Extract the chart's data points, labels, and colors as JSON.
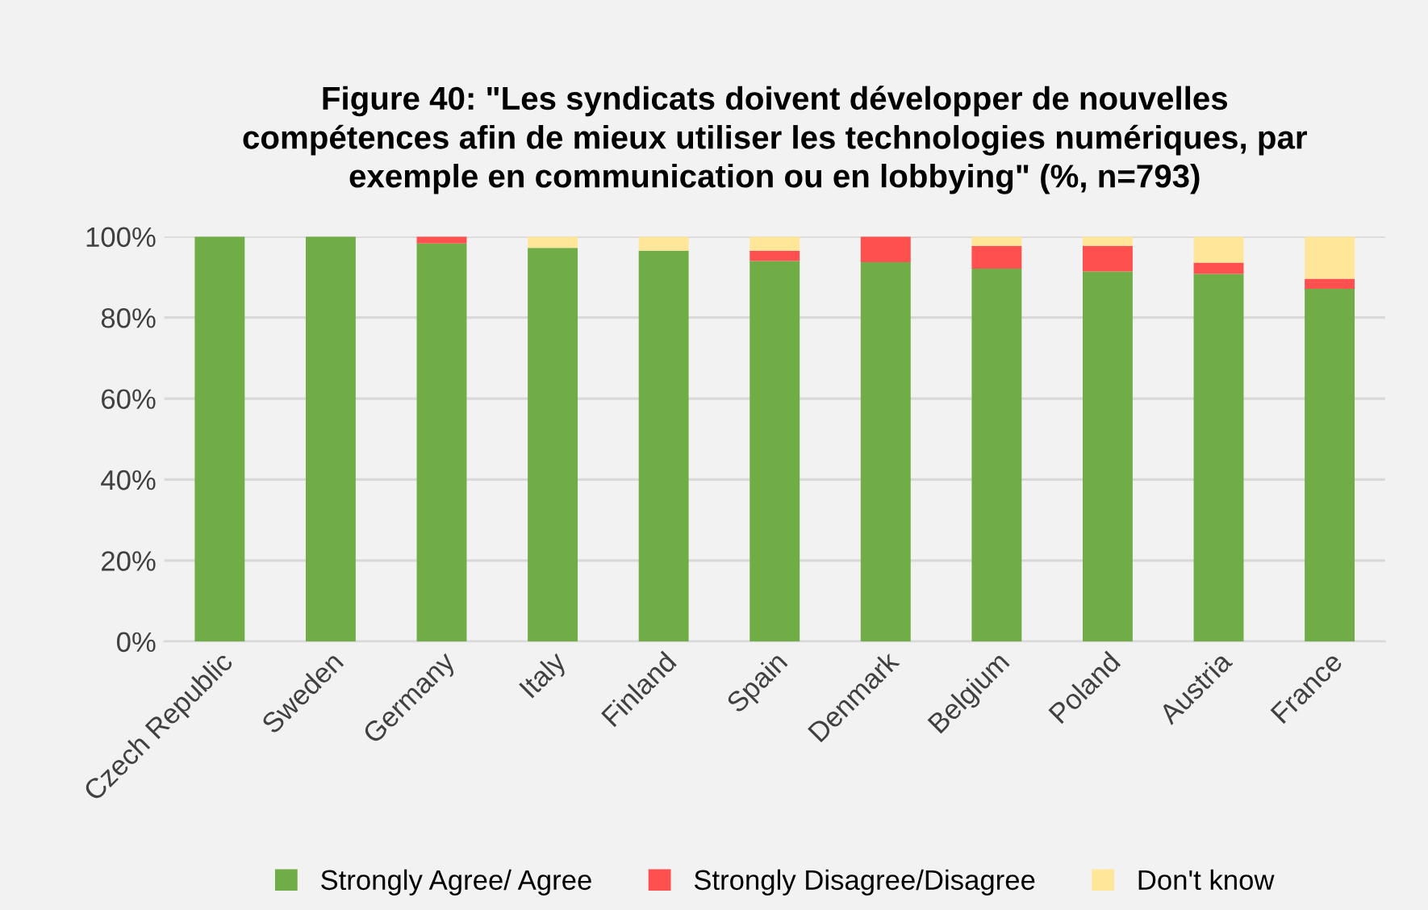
{
  "chart_data": {
    "type": "bar",
    "stacked": true,
    "title": "Figure 40: \"Les syndicats doivent développer de nouvelles\ncompétences afin de mieux utiliser les technologies numériques, par\nexemple en communication ou en lobbying\" (%, n=793)",
    "categories": [
      "Czech Republic",
      "Sweden",
      "Germany",
      "Italy",
      "Finland",
      "Spain",
      "Denmark",
      "Belgium",
      "Poland",
      "Austria",
      "France"
    ],
    "series": [
      {
        "name": "Strongly Agree/ Agree",
        "color": "#70ad47",
        "values": [
          100,
          100,
          98.3,
          97.2,
          96.5,
          94.0,
          93.7,
          92.1,
          91.4,
          90.8,
          87.1
        ]
      },
      {
        "name": "Strongly Disagree/Disagree",
        "color": "#ff5050",
        "values": [
          0,
          0,
          1.7,
          0,
          0,
          2.5,
          6.3,
          5.6,
          6.3,
          2.8,
          2.5
        ]
      },
      {
        "name": "Don't know",
        "color": "#ffe699",
        "values": [
          0,
          0,
          0,
          2.8,
          3.5,
          3.5,
          0,
          2.3,
          2.3,
          6.4,
          10.4
        ]
      }
    ],
    "ylim": [
      0,
      100
    ],
    "yticks": [
      {
        "value": 0,
        "label": "0%"
      },
      {
        "value": 20,
        "label": "20%"
      },
      {
        "value": 40,
        "label": "40%"
      },
      {
        "value": 60,
        "label": "60%"
      },
      {
        "value": 80,
        "label": "80%"
      },
      {
        "value": 100,
        "label": "100%"
      }
    ],
    "grid": "y",
    "legend": "bottom"
  }
}
